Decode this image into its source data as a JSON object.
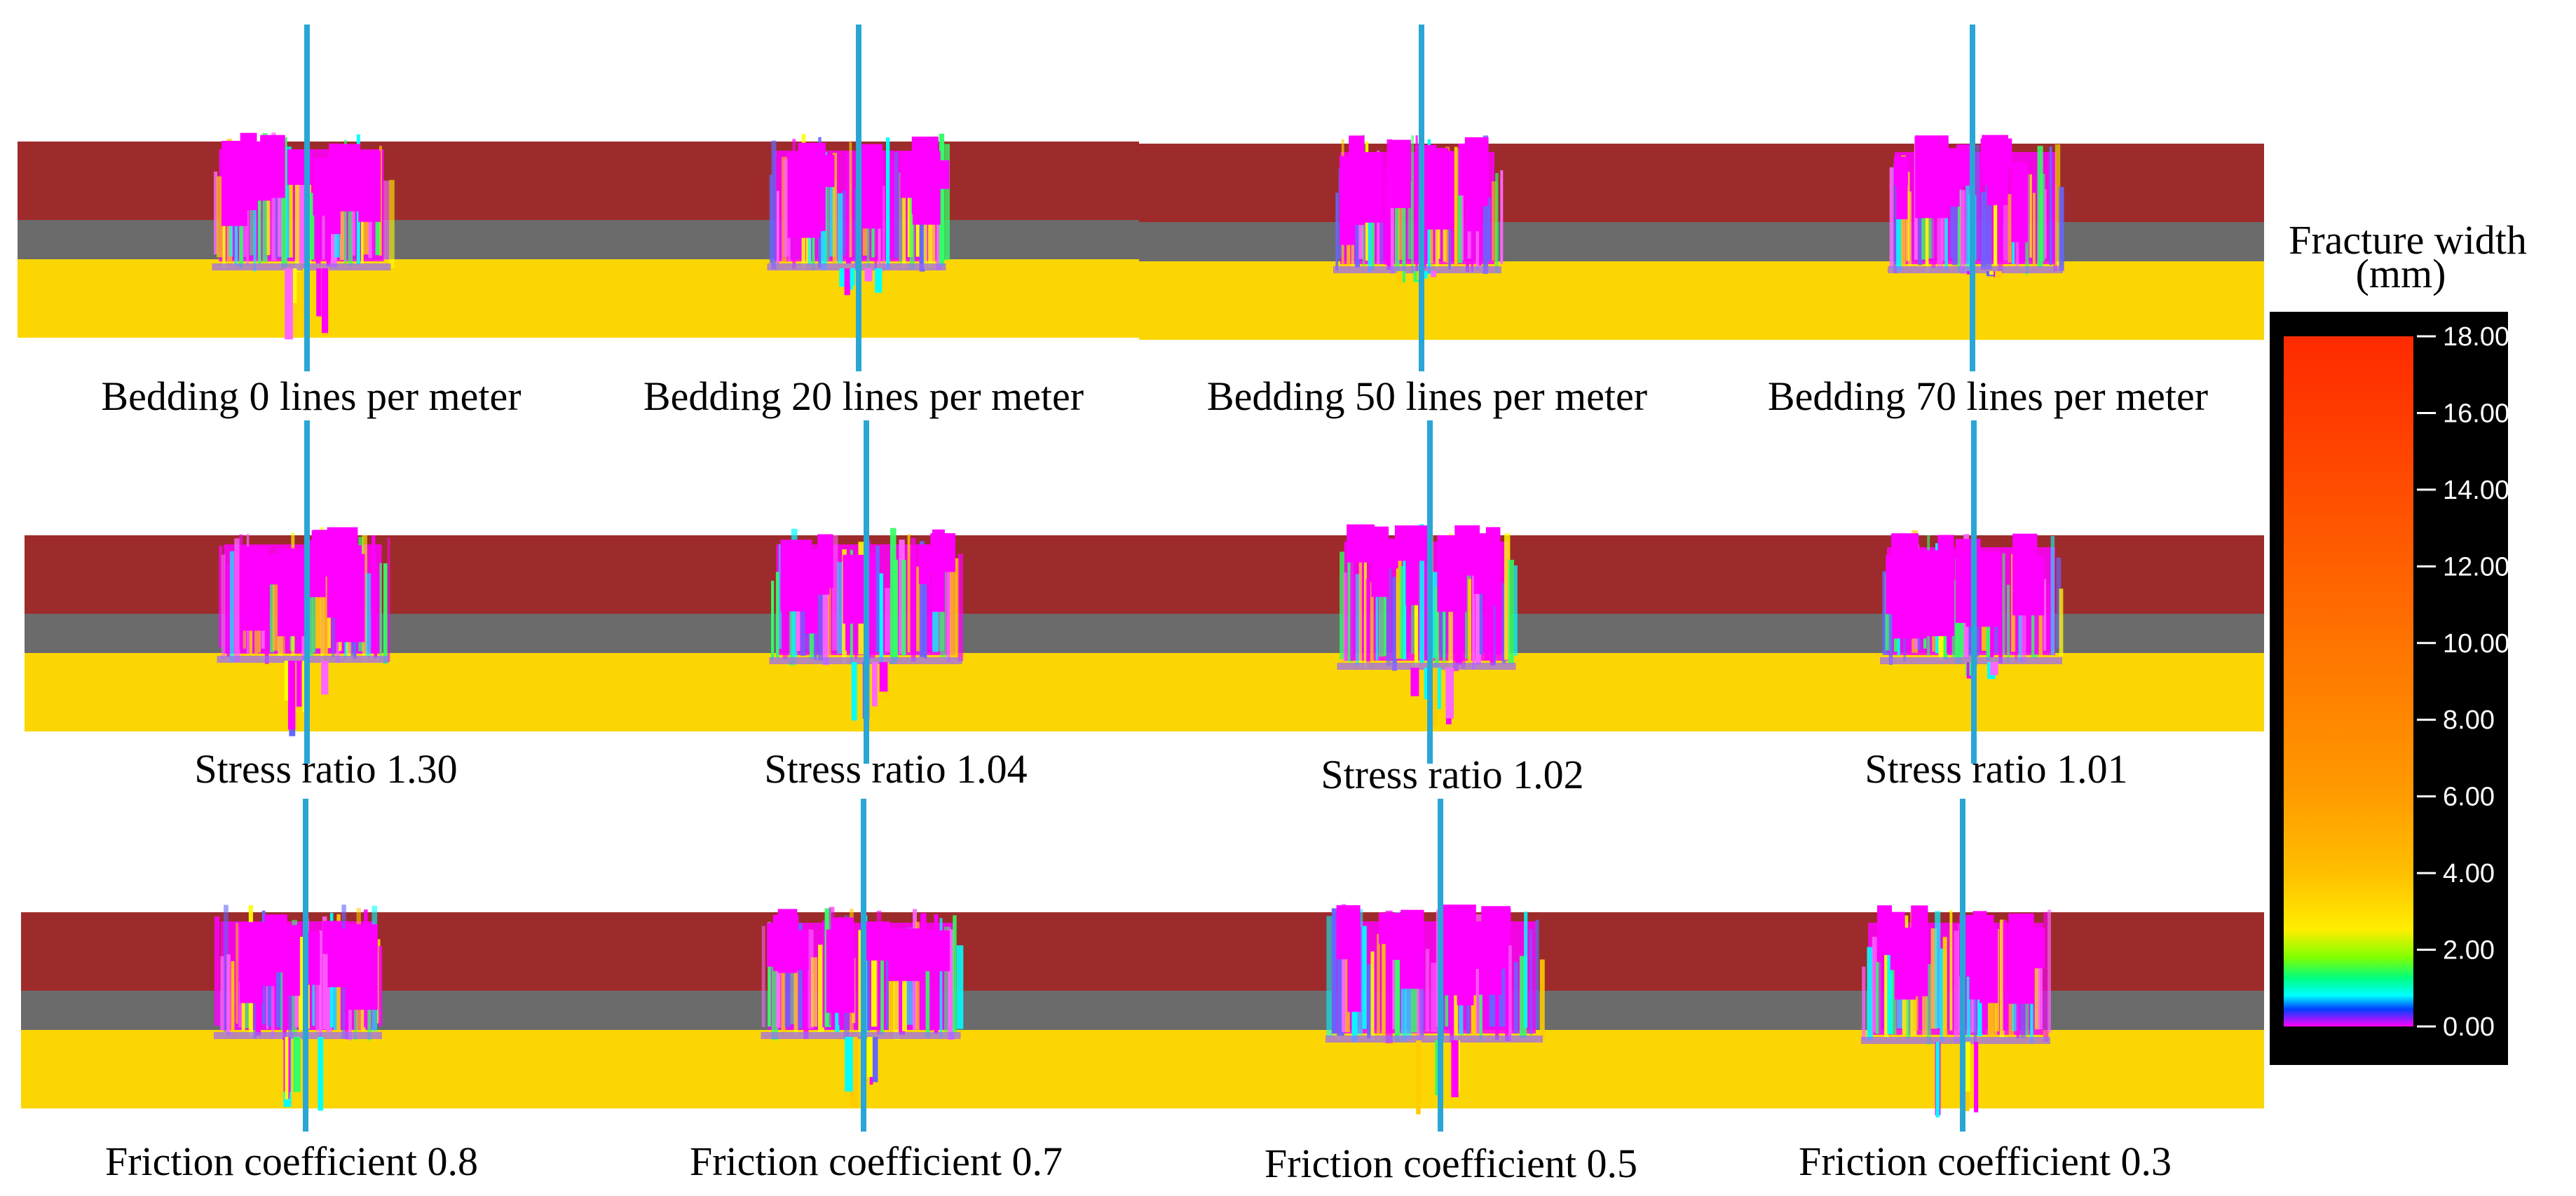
{
  "colors": {
    "upper_layer": "#9e2b2b",
    "middle_layer": "#6b6b6b",
    "lower_layer": "#fbd603",
    "wellbore": "#29a6d6",
    "fracture_primary": "#ff00ff",
    "fracture_mix": [
      "#ff00ff",
      "#ffff00",
      "#00ffff",
      "#33ff66",
      "#ff66ff",
      "#ffcc00",
      "#6666ff"
    ]
  },
  "panels": [
    {
      "caption": "Bedding  0 lines per meter"
    },
    {
      "caption": "Bedding  20 lines per meter"
    },
    {
      "caption": "Bedding  50 lines per meter"
    },
    {
      "caption": "Bedding  70 lines per meter"
    },
    {
      "caption": "Stress ratio  1.30"
    },
    {
      "caption": "Stress ratio  1.04"
    },
    {
      "caption": "Stress ratio  1.02"
    },
    {
      "caption": "Stress ratio  1.01"
    },
    {
      "caption": "Friction coefficient  0.8"
    },
    {
      "caption": "Friction coefficient  0.7"
    },
    {
      "caption": "Friction coefficient  0.5"
    },
    {
      "caption": "Friction coefficient  0.3"
    }
  ],
  "legend": {
    "title_line1": "Fracture  width",
    "title_line2": "(mm)",
    "ticks": [
      "18.00",
      "16.00",
      "14.00",
      "12.00",
      "10.00",
      "8.00",
      "6.00",
      "4.00",
      "2.00",
      "0.00"
    ],
    "gradient_stops": [
      "#ff2a00",
      "#ff4a00",
      "#ff6a00",
      "#ff8a00",
      "#ffaa00",
      "#ffd000",
      "#ffff00",
      "#00ff00",
      "#00ffff",
      "#0040ff",
      "#ff00ff"
    ]
  }
}
